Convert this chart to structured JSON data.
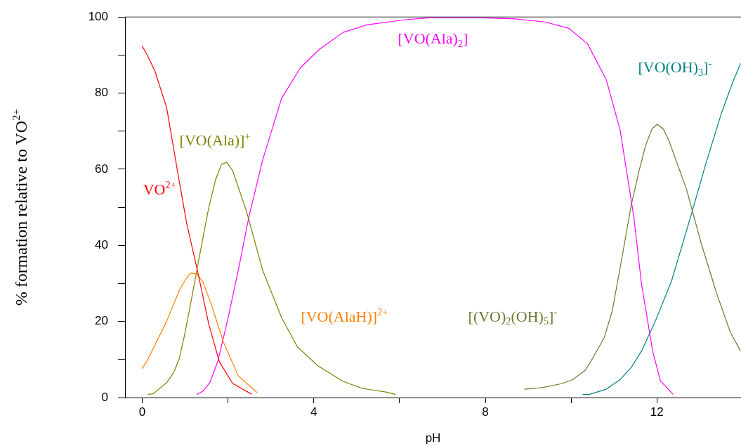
{
  "chart_data": {
    "type": "line",
    "xlabel": "pH",
    "ylabel": "% formation relative to VO$^{2+}$",
    "xlim": [
      -0.4,
      13.96
    ],
    "ylim": [
      0,
      100
    ],
    "xticks": [
      0,
      {
        "value": 2,
        "label": null
      },
      4,
      {
        "value": 6,
        "label": null
      },
      8,
      {
        "value": 10,
        "label": null
      },
      12
    ],
    "yticks": [
      0,
      {
        "value": 10,
        "label": null
      },
      20,
      {
        "value": 30,
        "label": null
      },
      40,
      {
        "value": 50,
        "label": null
      },
      60,
      {
        "value": 70,
        "label": null
      },
      80,
      {
        "value": 90,
        "label": null
      },
      100
    ],
    "series": [
      {
        "name": "VO$^{2+}$",
        "color": "#ff0000",
        "x": [
          0,
          0.13,
          0.29,
          0.57,
          0.8,
          1.04,
          1.3,
          1.55,
          1.8,
          2.11,
          2.55
        ],
        "values": [
          92.4,
          89.7,
          86,
          76.2,
          61,
          45.6,
          32.8,
          19.4,
          9.4,
          3.7,
          0.9
        ]
      },
      {
        "name": "[VO(AlaH)]$^{2+}$",
        "color": "#ff8000",
        "x": [
          0,
          0.13,
          0.57,
          0.86,
          1.01,
          1.13,
          1.27,
          1.42,
          1.62,
          1.9,
          2.24,
          2.68
        ],
        "values": [
          7.6,
          10,
          20,
          28,
          31,
          32.7,
          32.5,
          30.3,
          24.2,
          14.4,
          5.7,
          1.3
        ]
      },
      {
        "name": "[VO(Ala)]$^{+}$",
        "color": "#808000",
        "x": [
          0.13,
          0.26,
          0.57,
          0.73,
          0.86,
          0.98,
          1.11,
          1.3,
          1.55,
          1.71,
          1.85,
          1.97,
          2.11,
          2.43,
          2.81,
          3.25,
          3.62,
          4.1,
          4.69,
          5.13,
          5.7,
          5.91
        ],
        "values": [
          0.8,
          1,
          3.9,
          6.5,
          10,
          16,
          23.5,
          35,
          49.8,
          57.2,
          61.3,
          61.8,
          59.6,
          49,
          33.4,
          21,
          13.3,
          8.3,
          4.2,
          2.4,
          1.4,
          0.8
        ]
      },
      {
        "name": "[VO(Ala)$_{2}$]",
        "color": "#ff00ff",
        "x": [
          1.27,
          1.42,
          1.58,
          1.76,
          1.99,
          2.24,
          2.49,
          2.81,
          3.25,
          3.69,
          4.13,
          4.69,
          5.26,
          6.14,
          6.69,
          7.94,
          8.7,
          9.39,
          9.95,
          10.38,
          10.82,
          11.14,
          11.46,
          11.64,
          11.9,
          12.08,
          12.38
        ],
        "values": [
          0.8,
          1.7,
          4,
          9.4,
          20.3,
          33.4,
          47.6,
          62.5,
          78.6,
          86.7,
          91.5,
          96,
          98,
          99.3,
          99.8,
          99.8,
          99.5,
          98.7,
          97,
          93,
          83.5,
          70.4,
          47.6,
          29.9,
          12.2,
          4.4,
          0.8
        ]
      },
      {
        "name": "[(VO)$_{2}$(OH)$_{5}$]$^{-}$",
        "color": "#6b7a2f",
        "x": [
          8.91,
          9.32,
          9.76,
          10.04,
          10.33,
          10.45,
          10.77,
          10.96,
          11.2,
          11.4,
          11.58,
          11.74,
          11.89,
          12.01,
          12.15,
          12.28,
          12.69,
          13.03,
          13.4,
          13.71,
          13.95
        ],
        "values": [
          2.2,
          2.6,
          3.6,
          4.7,
          7.2,
          9.3,
          15.7,
          22.8,
          37.7,
          50.5,
          59.4,
          66.4,
          70.7,
          71.8,
          70.5,
          67.5,
          54.7,
          40.6,
          27.1,
          17.2,
          12.2
        ]
      },
      {
        "name": "[VO(OH)$_{3}$]$^{-}$",
        "color": "#008080",
        "x": [
          10.27,
          10.42,
          10.82,
          11.14,
          11.4,
          11.64,
          11.96,
          12.34,
          12.77,
          13.15,
          13.5,
          13.78,
          13.95
        ],
        "values": [
          0.8,
          0.8,
          2.2,
          4.7,
          7.9,
          12.2,
          20,
          30.6,
          46.9,
          61.8,
          74.6,
          83.2,
          87.8
        ]
      }
    ]
  }
}
